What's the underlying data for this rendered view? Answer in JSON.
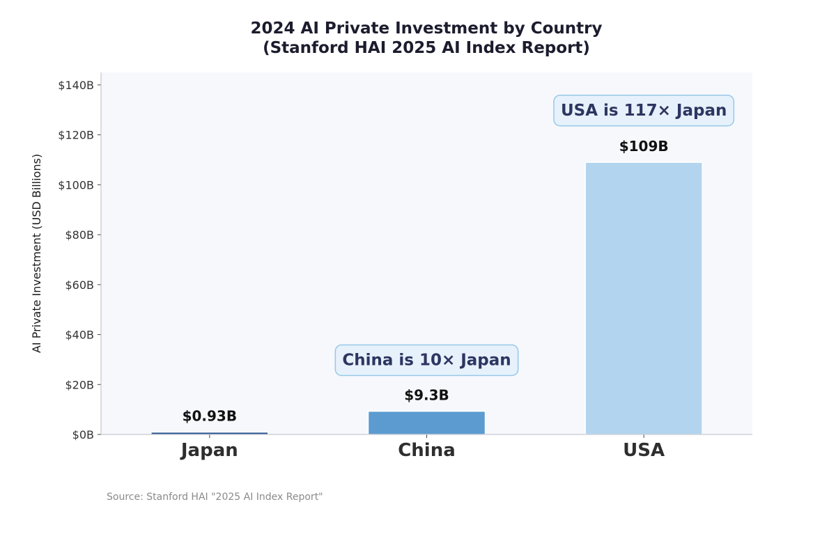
{
  "chart_data": {
    "type": "bar",
    "title": "2024 AI Private Investment by Country",
    "subtitle": "(Stanford HAI 2025 AI Index Report)",
    "xlabel": "",
    "ylabel": "AI Private Investment (USD Billions)",
    "ylim": [
      0,
      145
    ],
    "yticks": [
      0,
      20,
      40,
      60,
      80,
      100,
      120,
      140
    ],
    "ytick_labels": [
      "$0B",
      "$20B",
      "$40B",
      "$60B",
      "$80B",
      "$100B",
      "$120B",
      "$140B"
    ],
    "categories": [
      "Japan",
      "China",
      "USA"
    ],
    "values": [
      0.93,
      9.3,
      109
    ],
    "value_labels": [
      "$0.93B",
      "$9.3B",
      "$109B"
    ],
    "bar_colors": [
      "#1f4e8c",
      "#5b9bd0",
      "#b3d4ef"
    ],
    "annotations": [
      {
        "text": "China is 10× Japan",
        "category": "China",
        "y": 30
      },
      {
        "text": "USA is 117× Japan",
        "category": "USA",
        "y": 130
      }
    ],
    "grid": false,
    "source": "Source: Stanford HAI \"2025 AI Index Report\""
  },
  "colors": {
    "plot_background": "#f6f8fc",
    "axis": "#b8bcc8",
    "callout_fill": "#e6f1fb",
    "callout_border": "#98c8e8",
    "callout_text": "#2d3561"
  }
}
